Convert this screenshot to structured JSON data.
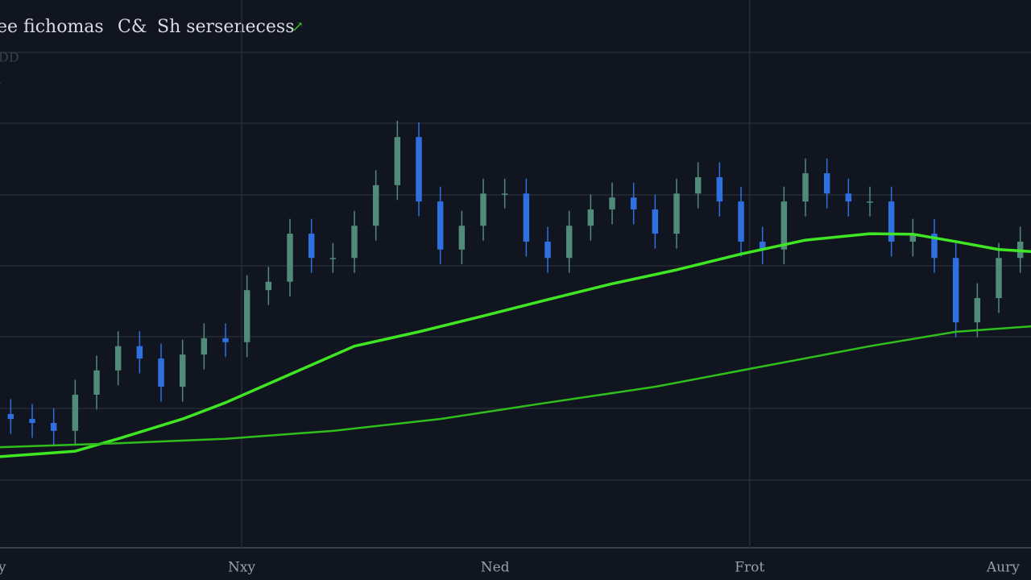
{
  "chart_data": {
    "type": "candlestick",
    "title_parts": [
      "ee fichomas",
      "C&",
      "Sh sersenecess"
    ],
    "subtitle": "DD",
    "x": [
      0,
      1,
      2,
      3,
      4,
      5,
      6,
      7,
      8,
      9,
      10,
      11,
      12,
      13,
      14,
      15,
      16,
      17,
      18,
      19,
      20,
      21,
      22,
      23,
      24,
      25,
      26,
      27,
      28,
      29,
      30,
      31,
      32,
      33,
      34,
      35,
      36,
      37,
      38,
      39,
      40,
      41,
      42,
      43,
      44,
      45,
      46,
      47
    ],
    "open": [
      27.0,
      26.0,
      25.2,
      23.6,
      30.9,
      35.8,
      40.7,
      38.2,
      32.5,
      39.0,
      42.3,
      41.5,
      52.0,
      53.7,
      63.4,
      58.5,
      58.5,
      65.0,
      73.2,
      82.9,
      69.9,
      60.2,
      65.0,
      71.5,
      71.5,
      61.8,
      58.5,
      65.0,
      68.3,
      70.7,
      68.3,
      63.4,
      71.5,
      74.8,
      69.9,
      61.8,
      60.2,
      69.9,
      75.6,
      71.5,
      69.9,
      69.9,
      61.8,
      63.4,
      58.5,
      45.5,
      50.4,
      58.5
    ],
    "high": [
      30.0,
      29.0,
      28.2,
      33.9,
      38.8,
      43.7,
      43.7,
      41.2,
      42.0,
      45.3,
      45.3,
      55.0,
      56.7,
      66.4,
      66.4,
      61.5,
      68.0,
      76.2,
      86.2,
      85.9,
      72.9,
      68.0,
      74.5,
      74.5,
      74.5,
      64.8,
      68.0,
      71.3,
      73.7,
      73.7,
      71.3,
      74.5,
      77.8,
      77.8,
      72.9,
      64.8,
      72.9,
      78.6,
      78.6,
      74.5,
      72.9,
      72.9,
      66.4,
      66.4,
      61.5,
      53.4,
      61.5,
      64.8
    ],
    "low": [
      23.0,
      22.2,
      20.6,
      20.6,
      27.9,
      32.8,
      35.2,
      29.5,
      29.5,
      36.0,
      38.5,
      38.5,
      49.0,
      50.7,
      55.5,
      55.5,
      55.5,
      62.0,
      70.2,
      66.9,
      57.2,
      57.2,
      62.0,
      68.5,
      58.8,
      55.5,
      55.5,
      62.0,
      65.3,
      65.3,
      60.4,
      60.4,
      68.5,
      66.9,
      58.8,
      57.2,
      57.2,
      66.9,
      68.5,
      66.9,
      66.9,
      58.8,
      58.8,
      55.5,
      42.5,
      42.5,
      47.4,
      55.5
    ],
    "close": [
      26.0,
      25.2,
      23.6,
      30.9,
      35.8,
      40.7,
      38.2,
      32.5,
      39.0,
      42.3,
      41.5,
      52.0,
      53.7,
      63.4,
      58.5,
      58.5,
      65.0,
      73.2,
      82.9,
      69.9,
      60.2,
      65.0,
      71.5,
      71.5,
      61.8,
      58.5,
      65.0,
      68.3,
      70.7,
      68.3,
      63.4,
      71.5,
      74.8,
      69.9,
      61.8,
      60.2,
      69.9,
      75.6,
      71.5,
      69.9,
      69.9,
      61.8,
      63.4,
      58.5,
      45.5,
      50.4,
      58.5,
      61.8
    ],
    "up_color": "#4f8a7a",
    "down_color": "#2f6fe0",
    "lines": [
      {
        "color": "#3fe624",
        "x": [
          -0.5,
          3,
          5,
          8,
          10,
          13,
          16,
          19,
          22,
          25,
          28,
          31,
          34,
          37,
          40,
          42,
          44,
          46,
          47.5
        ],
        "values": [
          18.4,
          19.5,
          22.0,
          26.0,
          29.3,
          35.0,
          40.7,
          43.6,
          46.8,
          50.1,
          53.3,
          56.1,
          59.3,
          62.1,
          63.4,
          63.3,
          61.8,
          60.2,
          59.8
        ]
      },
      {
        "color": "#2fbf1c",
        "x": [
          -0.5,
          5,
          10,
          15,
          20,
          25,
          30,
          35,
          40,
          44,
          47.5
        ],
        "values": [
          20.3,
          21.1,
          22.0,
          23.6,
          26.0,
          29.3,
          32.5,
          36.6,
          40.7,
          43.6,
          44.7
        ]
      }
    ],
    "xlim": [
      -0.5,
      47.5
    ],
    "ylim": [
      0,
      100
    ],
    "xticks": [
      {
        "value": -0.4,
        "label": "y"
      },
      {
        "value": 10.75,
        "label": "Nxy"
      },
      {
        "value": 22.55,
        "label": "Ned"
      },
      {
        "value": 34.4,
        "label": "Frot"
      },
      {
        "value": 46.2,
        "label": "Aury"
      }
    ]
  }
}
